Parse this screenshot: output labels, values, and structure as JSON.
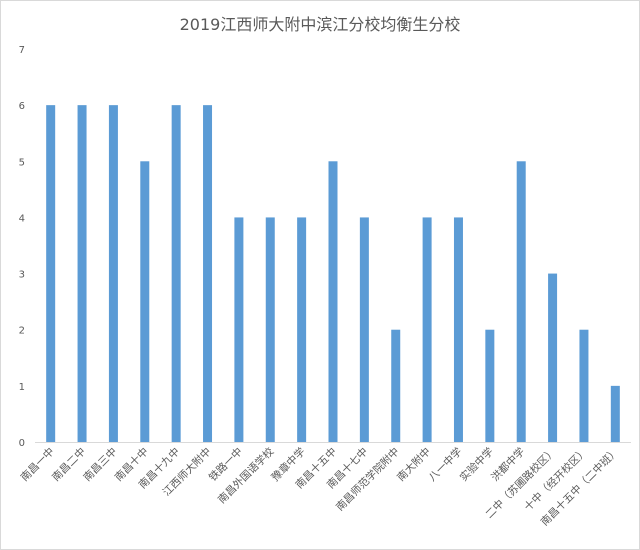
{
  "chart_data": {
    "type": "bar",
    "title": "2019江西师大附中滨江分校均衡生分校",
    "xlabel": "",
    "ylabel": "",
    "ylim": [
      0,
      7
    ],
    "yticks": [
      0,
      1,
      2,
      3,
      4,
      5,
      6,
      7
    ],
    "grid": false,
    "legend": "none",
    "color": "#5b9bd5",
    "categories": [
      "南昌一中",
      "南昌二中",
      "南昌三中",
      "南昌十中",
      "南昌十九中",
      "江西师大附中",
      "铁路一中",
      "南昌外国语学校",
      "豫章中学",
      "南昌十五中",
      "南昌十七中",
      "南昌师范学院附中",
      "南大附中",
      "八一中学",
      "实验中学",
      "洪都中学",
      "二中（苏圃路校区）",
      "十中（经开校区）",
      "南昌十五中（二中班）"
    ],
    "values": [
      6,
      6,
      6,
      5,
      6,
      6,
      4,
      4,
      4,
      5,
      4,
      2,
      4,
      4,
      2,
      5,
      3,
      2,
      1
    ]
  }
}
